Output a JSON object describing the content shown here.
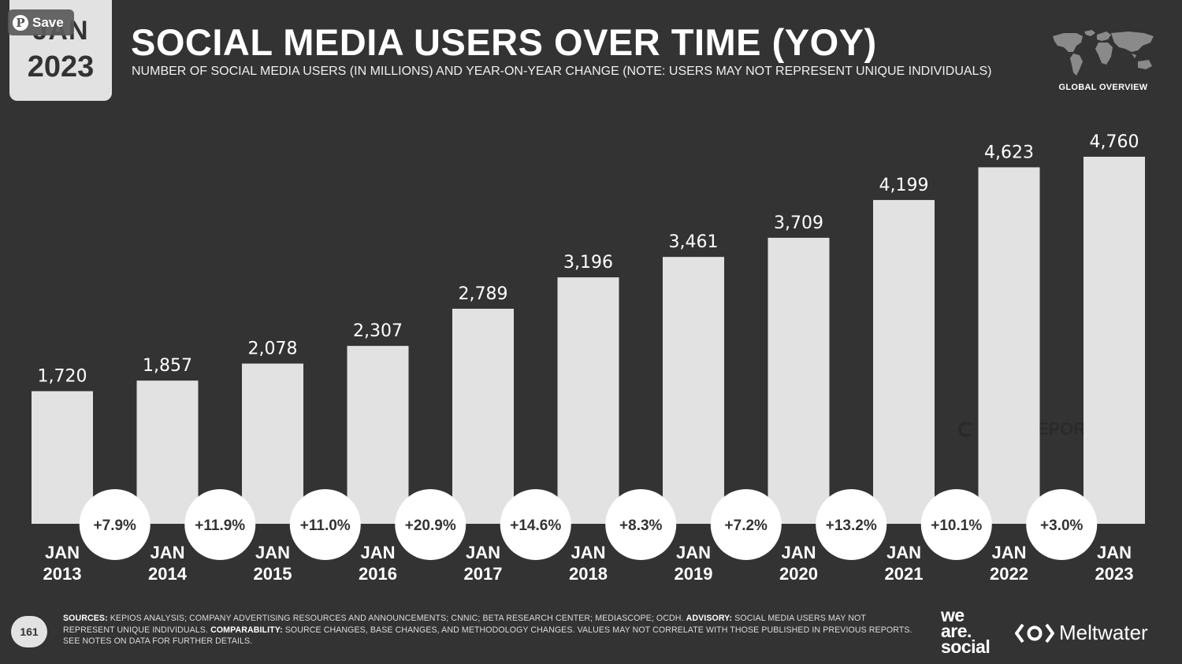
{
  "header": {
    "date_month": "JAN",
    "date_year": "2023",
    "save_label": "Save",
    "title": "SOCIAL MEDIA USERS OVER TIME (YOY)",
    "subtitle": "NUMBER OF SOCIAL MEDIA USERS (IN MILLIONS) AND YEAR-ON-YEAR CHANGE (NOTE: USERS MAY NOT REPRESENT UNIQUE INDIVIDUALS)",
    "global_label": "GLOBAL OVERVIEW"
  },
  "watermark": "DATAREPORTAL",
  "chart_data": {
    "type": "bar",
    "categories": [
      [
        "JAN",
        "2013"
      ],
      [
        "JAN",
        "2014"
      ],
      [
        "JAN",
        "2015"
      ],
      [
        "JAN",
        "2016"
      ],
      [
        "JAN",
        "2017"
      ],
      [
        "JAN",
        "2018"
      ],
      [
        "JAN",
        "2019"
      ],
      [
        "JAN",
        "2020"
      ],
      [
        "JAN",
        "2021"
      ],
      [
        "JAN",
        "2022"
      ],
      [
        "JAN",
        "2023"
      ]
    ],
    "values": [
      1720,
      1857,
      2078,
      2307,
      2789,
      3196,
      3461,
      3709,
      4199,
      4623,
      4760
    ],
    "value_labels": [
      "1,720",
      "1,857",
      "2,078",
      "2,307",
      "2,789",
      "3,196",
      "3,461",
      "3,709",
      "4,199",
      "4,623",
      "4,760"
    ],
    "yoy_change": [
      "+7.9%",
      "+11.9%",
      "+11.0%",
      "+20.9%",
      "+14.6%",
      "+8.3%",
      "+7.2%",
      "+13.2%",
      "+10.1%",
      "+3.0%"
    ],
    "ylim": [
      0,
      5000
    ],
    "grid": false,
    "colors": {
      "bar": "#e2e2e2",
      "bubble": "#ffffff",
      "background": "#333333"
    }
  },
  "footer": {
    "page_number": "161",
    "sources_label": "SOURCES:",
    "sources_text": " KEPIOS ANALYSIS; COMPANY ADVERTISING RESOURCES AND ANNOUNCEMENTS; CNNIC; BETA RESEARCH CENTER; MEDIASCOPE; OCDH. ",
    "advisory_label": "ADVISORY:",
    "advisory_text": " SOCIAL MEDIA USERS MAY NOT REPRESENT UNIQUE INDIVIDUALS. ",
    "comparability_label": "COMPARABILITY:",
    "comparability_text": " SOURCE CHANGES, BASE CHANGES, AND METHODOLOGY CHANGES. VALUES MAY NOT CORRELATE WITH THOSE PUBLISHED IN PREVIOUS REPORTS. SEE NOTES ON DATA FOR FURTHER DETAILS.",
    "brand_we": "we",
    "brand_are": "are.",
    "brand_social": "social",
    "brand_meltwater": "Meltwater"
  }
}
